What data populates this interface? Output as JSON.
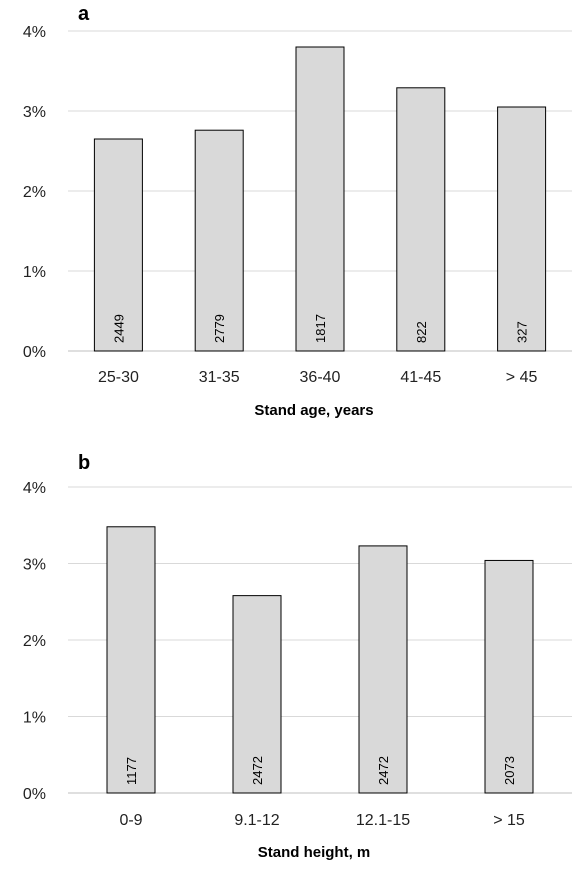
{
  "chart_data": [
    {
      "type": "bar",
      "panel_label": "a",
      "categories": [
        "25-30",
        "31-35",
        "36-40",
        "41-45",
        "> 45"
      ],
      "values": [
        2.65,
        2.76,
        3.8,
        3.29,
        3.05
      ],
      "bar_labels": [
        "2449",
        "2779",
        "1817",
        "822",
        "327"
      ],
      "xlabel": "Stand age, years",
      "ylabel": "",
      "ylim": [
        0,
        4
      ],
      "yticks": [
        0,
        1,
        2,
        3,
        4
      ],
      "ytick_labels": [
        "0%",
        "1%",
        "2%",
        "3%",
        "4%"
      ],
      "grid": true,
      "bar_color": "#d9d9d9",
      "bar_edge_color": "#000000",
      "grid_color": "#d9d9d9"
    },
    {
      "type": "bar",
      "panel_label": "b",
      "categories": [
        "0-9",
        "9.1-12",
        "12.1-15",
        "> 15"
      ],
      "values": [
        3.48,
        2.58,
        3.23,
        3.04
      ],
      "bar_labels": [
        "1177",
        "2472",
        "2472",
        "2073"
      ],
      "xlabel": "Stand height, m",
      "ylabel": "",
      "ylim": [
        0,
        4
      ],
      "yticks": [
        0,
        1,
        2,
        3,
        4
      ],
      "ytick_labels": [
        "0%",
        "1%",
        "2%",
        "3%",
        "4%"
      ],
      "grid": true,
      "bar_color": "#d9d9d9",
      "bar_edge_color": "#000000",
      "grid_color": "#d9d9d9"
    }
  ]
}
